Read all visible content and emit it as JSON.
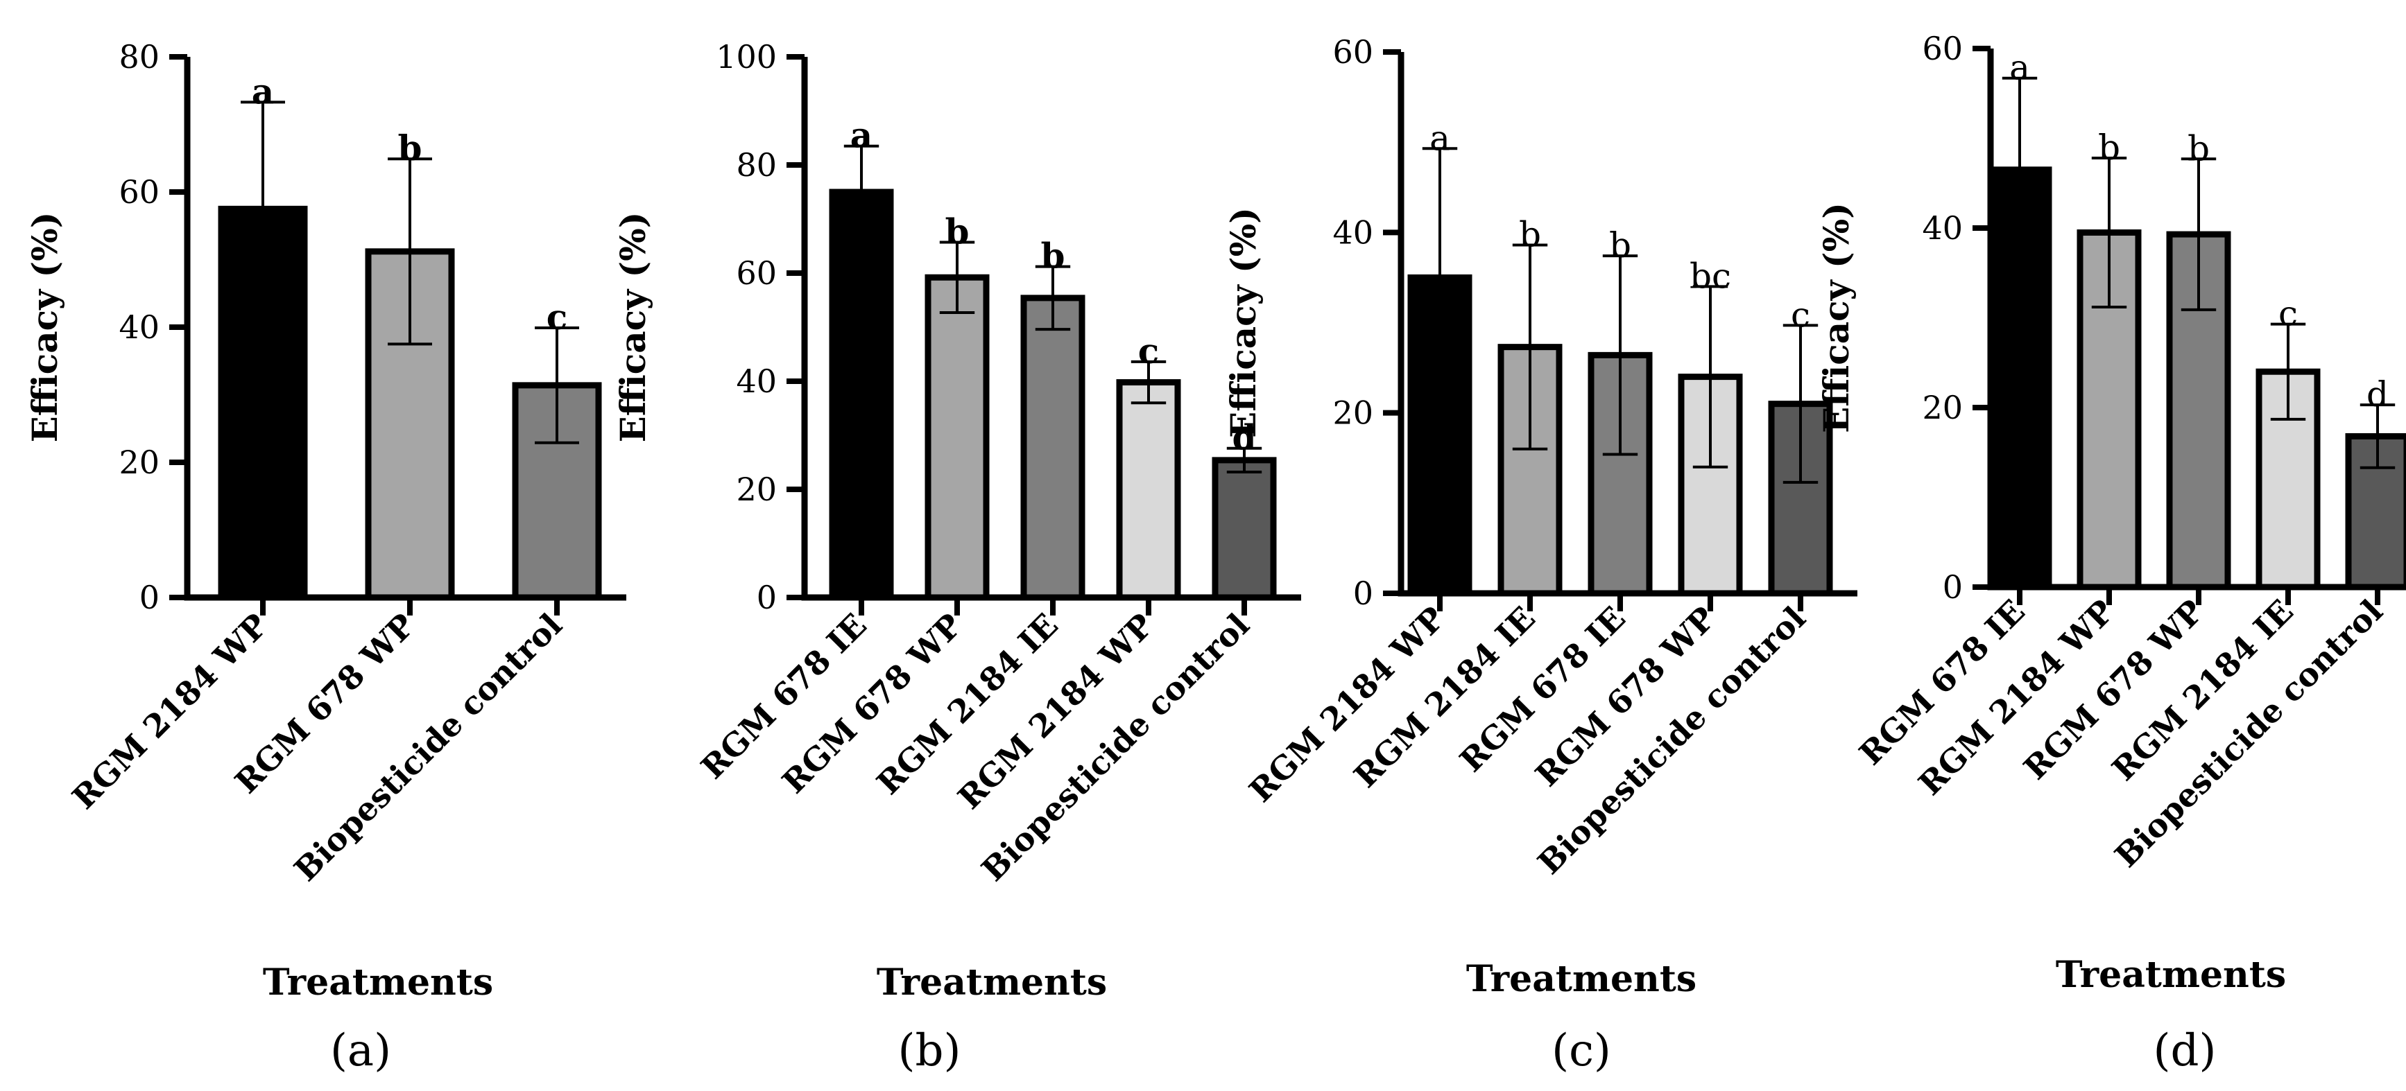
{
  "chart_data": [
    {
      "panel_label": "(a)",
      "type": "bar",
      "xlabel": "Treatments",
      "ylabel": "Efficacy (%)",
      "ylim": [
        0,
        80
      ],
      "yticks": [
        "0",
        "20",
        "40",
        "60",
        "80"
      ],
      "sig_bold": true,
      "categories": [
        "RGM 2184 WP",
        "RGM 678 WP",
        "Biopesticide control"
      ],
      "values": [
        57.5,
        51.2,
        31.4
      ],
      "errors": [
        15.8,
        13.7,
        8.5
      ],
      "letters": [
        "a",
        "b",
        "c"
      ],
      "colors": [
        "#000000",
        "#a6a6a6",
        "#7f7f7f"
      ]
    },
    {
      "panel_label": "(b)",
      "type": "bar",
      "xlabel": "Treatments",
      "ylabel": "Efficacy (%)",
      "ylim": [
        0,
        100
      ],
      "yticks": [
        "0",
        "20",
        "40",
        "60",
        "80",
        "100"
      ],
      "sig_bold": true,
      "categories": [
        "RGM 678 IE",
        "RGM 678 WP",
        "RGM 2184 IE",
        "RGM 2184 WP",
        "Biopesticide control"
      ],
      "values": [
        75.0,
        59.2,
        55.4,
        39.8,
        25.4
      ],
      "errors": [
        8.5,
        6.5,
        5.8,
        3.8,
        2.2
      ],
      "letters": [
        "a",
        "b",
        "b",
        "c",
        "d"
      ],
      "colors": [
        "#000000",
        "#a6a6a6",
        "#7f7f7f",
        "#d9d9d9",
        "#595959"
      ]
    },
    {
      "panel_label": "(c)",
      "type": "bar",
      "xlabel": "Treatments",
      "ylabel": "Efficacy (%)",
      "ylim": [
        0,
        60
      ],
      "yticks": [
        "0",
        "20",
        "40",
        "60"
      ],
      "sig_bold": false,
      "categories": [
        "RGM 2184 WP",
        "RGM 2184 IE",
        "RGM 678 IE",
        "RGM 678 WP",
        "Biopesticide control"
      ],
      "values": [
        35.0,
        27.3,
        26.4,
        24.0,
        21.0
      ],
      "errors": [
        14.3,
        11.3,
        11.0,
        10.0,
        8.7
      ],
      "letters": [
        "a",
        "b",
        "b",
        "bc",
        "c"
      ],
      "colors": [
        "#000000",
        "#a6a6a6",
        "#7f7f7f",
        "#d9d9d9",
        "#595959"
      ]
    },
    {
      "panel_label": "(d)",
      "type": "bar",
      "xlabel": "Treatments",
      "ylabel": "Efficacy (%)",
      "ylim": [
        0,
        60
      ],
      "yticks": [
        "0",
        "20",
        "40",
        "60"
      ],
      "sig_bold": false,
      "categories": [
        "RGM 678 IE",
        "RGM 2184 WP",
        "RGM 678 WP",
        "RGM 2184 IE",
        "Biopesticide control"
      ],
      "values": [
        46.5,
        39.5,
        39.3,
        24.0,
        16.8
      ],
      "errors": [
        10.2,
        8.3,
        8.4,
        5.3,
        3.5
      ],
      "letters": [
        "a",
        "b",
        "b",
        "c",
        "d"
      ],
      "colors": [
        "#000000",
        "#a6a6a6",
        "#7f7f7f",
        "#d9d9d9",
        "#595959"
      ]
    }
  ]
}
